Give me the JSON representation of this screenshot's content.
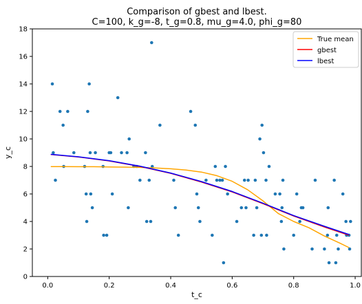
{
  "chart_data": {
    "type": "scatter",
    "title_line1": "Comparison of gbest and lbest.",
    "title_line2": "C=100, k_g=-8, t_g=0.8, mu_g=4.0, phi_g=80",
    "xlabel": "t_c",
    "ylabel": "y_c",
    "xlim": [
      -0.05,
      1.02
    ],
    "ylim": [
      0,
      18
    ],
    "xticks": [
      0.0,
      0.2,
      0.4,
      0.6,
      0.8,
      1.0
    ],
    "xtick_labels": [
      "0.0",
      "0.2",
      "0.4",
      "0.6",
      "0.8",
      "1.0"
    ],
    "yticks": [
      0,
      2,
      4,
      6,
      8,
      10,
      12,
      14,
      16,
      18
    ],
    "ytick_labels": [
      "0",
      "2",
      "4",
      "6",
      "8",
      "10",
      "12",
      "14",
      "16",
      "18"
    ],
    "grid": false,
    "legend_position": "top-right",
    "colors": {
      "points": "#1f77b4",
      "true_mean": "#ffa500",
      "gbest": "#ff0000",
      "lbest": "#0000ff"
    },
    "points": [
      [
        0.015,
        14
      ],
      [
        0.018,
        9
      ],
      [
        0.025,
        7
      ],
      [
        0.04,
        12
      ],
      [
        0.05,
        11
      ],
      [
        0.052,
        8
      ],
      [
        0.065,
        12
      ],
      [
        0.085,
        9
      ],
      [
        0.12,
        8
      ],
      [
        0.125,
        6
      ],
      [
        0.127,
        4
      ],
      [
        0.13,
        12
      ],
      [
        0.135,
        14
      ],
      [
        0.138,
        9
      ],
      [
        0.14,
        6
      ],
      [
        0.145,
        5
      ],
      [
        0.155,
        9
      ],
      [
        0.18,
        8
      ],
      [
        0.182,
        3
      ],
      [
        0.192,
        3
      ],
      [
        0.2,
        9
      ],
      [
        0.205,
        9
      ],
      [
        0.21,
        6
      ],
      [
        0.228,
        13
      ],
      [
        0.24,
        9
      ],
      [
        0.258,
        9
      ],
      [
        0.262,
        5
      ],
      [
        0.265,
        10
      ],
      [
        0.28,
        8
      ],
      [
        0.29,
        8
      ],
      [
        0.3,
        7
      ],
      [
        0.318,
        9
      ],
      [
        0.322,
        4
      ],
      [
        0.33,
        7
      ],
      [
        0.335,
        4
      ],
      [
        0.338,
        17
      ],
      [
        0.34,
        8
      ],
      [
        0.365,
        11
      ],
      [
        0.41,
        7
      ],
      [
        0.415,
        5
      ],
      [
        0.425,
        3
      ],
      [
        0.465,
        12
      ],
      [
        0.48,
        11
      ],
      [
        0.485,
        6
      ],
      [
        0.49,
        5
      ],
      [
        0.495,
        4
      ],
      [
        0.515,
        7
      ],
      [
        0.535,
        3
      ],
      [
        0.545,
        8
      ],
      [
        0.55,
        7
      ],
      [
        0.56,
        7
      ],
      [
        0.568,
        7
      ],
      [
        0.572,
        1
      ],
      [
        0.578,
        8
      ],
      [
        0.585,
        6
      ],
      [
        0.615,
        4
      ],
      [
        0.63,
        5
      ],
      [
        0.64,
        7
      ],
      [
        0.645,
        5
      ],
      [
        0.652,
        7
      ],
      [
        0.67,
        3
      ],
      [
        0.675,
        7
      ],
      [
        0.68,
        5
      ],
      [
        0.69,
        10
      ],
      [
        0.695,
        3
      ],
      [
        0.697,
        11
      ],
      [
        0.702,
        9
      ],
      [
        0.71,
        7
      ],
      [
        0.712,
        3
      ],
      [
        0.72,
        8
      ],
      [
        0.74,
        6
      ],
      [
        0.755,
        6
      ],
      [
        0.76,
        4
      ],
      [
        0.762,
        5
      ],
      [
        0.765,
        7
      ],
      [
        0.768,
        2
      ],
      [
        0.8,
        3
      ],
      [
        0.81,
        6
      ],
      [
        0.82,
        4
      ],
      [
        0.825,
        5
      ],
      [
        0.83,
        5
      ],
      [
        0.86,
        2
      ],
      [
        0.87,
        7
      ],
      [
        0.9,
        2
      ],
      [
        0.91,
        3
      ],
      [
        0.912,
        5
      ],
      [
        0.915,
        1
      ],
      [
        0.932,
        7
      ],
      [
        0.937,
        1
      ],
      [
        0.94,
        3
      ],
      [
        0.945,
        2
      ],
      [
        0.96,
        6
      ],
      [
        0.97,
        4
      ],
      [
        0.972,
        3
      ],
      [
        0.98,
        3
      ],
      [
        0.982,
        2
      ],
      [
        0.985,
        4
      ]
    ],
    "series": [
      {
        "name": "True mean",
        "x": [
          0.01,
          0.05,
          0.1,
          0.15,
          0.2,
          0.25,
          0.3,
          0.35,
          0.4,
          0.45,
          0.5,
          0.55,
          0.6,
          0.65,
          0.7,
          0.75,
          0.8,
          0.85,
          0.9,
          0.95,
          0.98
        ],
        "y": [
          7.99,
          7.99,
          7.98,
          7.98,
          7.96,
          7.95,
          7.93,
          7.89,
          7.83,
          7.74,
          7.59,
          7.33,
          6.92,
          6.31,
          5.5,
          4.58,
          4.0,
          3.54,
          2.94,
          2.43,
          2.1
        ]
      },
      {
        "name": "gbest",
        "x": [
          0.01,
          0.1,
          0.2,
          0.3,
          0.4,
          0.5,
          0.6,
          0.7,
          0.8,
          0.9,
          0.98
        ],
        "y": [
          8.87,
          8.69,
          8.4,
          8.0,
          7.5,
          6.87,
          6.15,
          5.3,
          4.4,
          3.6,
          3.0
        ]
      },
      {
        "name": "lbest",
        "x": [
          0.01,
          0.1,
          0.2,
          0.3,
          0.4,
          0.5,
          0.6,
          0.7,
          0.8,
          0.9,
          0.98
        ],
        "y": [
          8.88,
          8.7,
          8.42,
          8.02,
          7.52,
          6.9,
          6.18,
          5.33,
          4.43,
          3.65,
          3.05
        ]
      }
    ]
  }
}
